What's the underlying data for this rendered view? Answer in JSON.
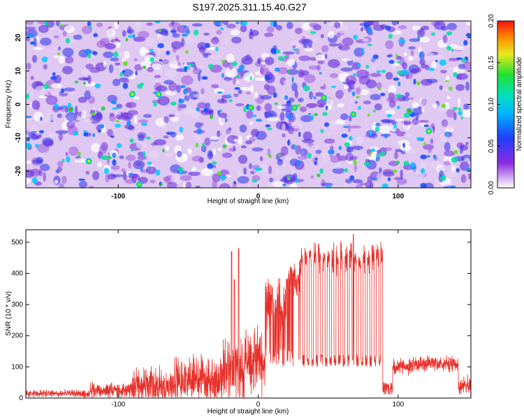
{
  "title": "S197.2025.311.15.40.G27",
  "chart_data": [
    {
      "type": "heatmap",
      "name": "spectrogram",
      "xlabel": "Height of straight line (km)",
      "ylabel": "Frequency (Hz)",
      "xlim": [
        -166,
        152
      ],
      "ylim": [
        -25,
        25
      ],
      "xticks": [
        -100,
        0,
        100
      ],
      "yticks": [
        -20,
        -10,
        0,
        10,
        20
      ],
      "colorbar": {
        "label": "Normalized spectral amplitude",
        "range": [
          0.0,
          0.2
        ],
        "ticks": [
          "0.00",
          "0.05",
          "0.10",
          "0.15",
          "0.20"
        ]
      },
      "hotspots": [
        {
          "x": -134,
          "y": -1.5,
          "value": 0.19
        },
        {
          "x": 108,
          "y": -2.0,
          "value": 0.19
        },
        {
          "x": -121,
          "y": -17,
          "value": 0.15
        },
        {
          "x": -90,
          "y": 3,
          "value": 0.14
        },
        {
          "x": -71,
          "y": 3,
          "value": 0.14
        },
        {
          "x": -5,
          "y": -1,
          "value": 0.12
        },
        {
          "x": 26,
          "y": -1,
          "value": 0.12
        },
        {
          "x": 68,
          "y": -3,
          "value": 0.13
        },
        {
          "x": 122,
          "y": -8,
          "value": 0.14
        },
        {
          "x": 47,
          "y": 2,
          "value": 0.12
        },
        {
          "x": -85,
          "y": -24,
          "value": 0.12
        }
      ]
    },
    {
      "type": "line",
      "name": "snr",
      "xlabel": "Height of straight line (km)",
      "ylabel": "SNR (10 * v/v)",
      "xlim": [
        -166,
        152
      ],
      "ylim": [
        0,
        540
      ],
      "xticks": [
        -100,
        0,
        100
      ],
      "yticks": [
        0,
        100,
        200,
        300,
        400,
        500
      ],
      "color": "#e8302a",
      "segments": [
        {
          "from": -166,
          "to": -120,
          "base": 15,
          "noise": 15
        },
        {
          "from": -120,
          "to": -90,
          "base": 25,
          "noise": 30
        },
        {
          "from": -90,
          "to": -60,
          "base": 40,
          "noise": 70
        },
        {
          "from": -60,
          "to": -25,
          "base": 60,
          "noise": 100
        },
        {
          "from": -25,
          "to": -10,
          "base": 90,
          "noise": 130
        },
        {
          "from": -10,
          "to": 5,
          "base": 120,
          "noise": 120
        },
        {
          "from": 5,
          "to": 20,
          "base": 300,
          "noise": 100
        },
        {
          "from": 20,
          "to": 30,
          "base": 380,
          "noise": 60
        },
        {
          "from": 30,
          "to": 89,
          "base": 450,
          "noise": 60
        },
        {
          "from": 89,
          "to": 96,
          "base": 50,
          "noise": 30
        },
        {
          "from": 96,
          "to": 110,
          "base": 100,
          "noise": 30
        },
        {
          "from": 110,
          "to": 143,
          "base": 110,
          "noise": 30
        },
        {
          "from": 143,
          "to": 152,
          "base": 40,
          "noise": 40
        }
      ],
      "drop_level": 120,
      "peaks": [
        {
          "x": -19,
          "y": 470
        },
        {
          "x": -14,
          "y": 480
        },
        {
          "x": -17,
          "y": 380
        },
        {
          "x": 68,
          "y": 525
        }
      ]
    }
  ]
}
